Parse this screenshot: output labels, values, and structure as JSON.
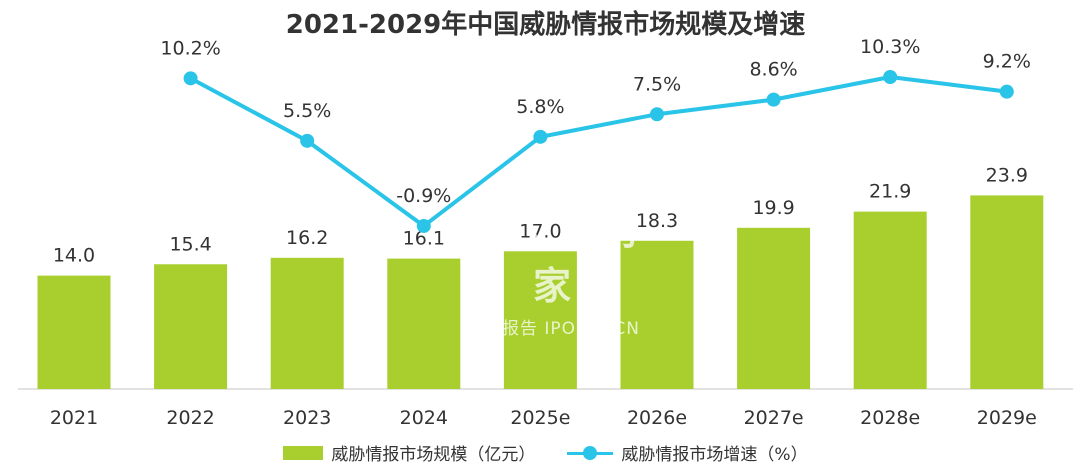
{
  "chart_data": {
    "type": "bar+line",
    "title": "2021-2029年中国威胁情报市场规模及增速",
    "categories": [
      "2021",
      "2022",
      "2023",
      "2024",
      "2025e",
      "2026e",
      "2027e",
      "2028e",
      "2029e"
    ],
    "series": [
      {
        "name": "威胁情报市场规模（亿元）",
        "type": "bar",
        "values": [
          14.0,
          15.4,
          16.2,
          16.1,
          17.0,
          18.3,
          19.9,
          21.9,
          23.9
        ],
        "labels": [
          "14.0",
          "15.4",
          "16.2",
          "16.1",
          "17.0",
          "18.3",
          "19.9",
          "21.9",
          "23.9"
        ],
        "color": "#a8cf2e"
      },
      {
        "name": "威胁情报市场增速（%）",
        "type": "line",
        "values": [
          null,
          10.2,
          5.5,
          -0.9,
          5.8,
          7.5,
          8.6,
          10.3,
          9.2
        ],
        "labels": [
          "",
          "10.2%",
          "5.5%",
          "-0.9%",
          "5.8%",
          "7.5%",
          "8.6%",
          "10.3%",
          "9.2%"
        ],
        "color": "#29c4e8"
      }
    ],
    "grid": false,
    "legend_position": "bottom-center"
  },
  "watermark": {
    "brand": "艾普购家",
    "sub": "行业报告 IPOIPO.CN"
  }
}
